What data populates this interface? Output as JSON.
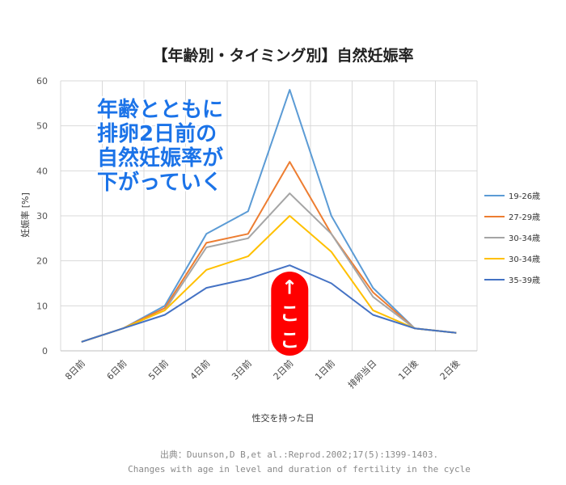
{
  "chart_data": {
    "type": "line",
    "title": "【年齢別・タイミング別】自然妊娠率",
    "xlabel": "性交を持った日",
    "ylabel": "妊娠率 [%]",
    "ylim": [
      0,
      60
    ],
    "yticks": [
      0,
      10,
      20,
      30,
      40,
      50,
      60
    ],
    "grid": "vertical-and-horizontal",
    "legend_position": "right",
    "categories": [
      "8日前",
      "6日前",
      "5日前",
      "4日前",
      "3日前",
      "2日前",
      "1日前",
      "排卵当日",
      "1日後",
      "2日後"
    ],
    "series": [
      {
        "name": "19-26歳",
        "color": "#5b9bd5",
        "values": [
          2,
          5,
          10,
          26,
          31,
          58,
          30,
          14,
          5,
          4
        ]
      },
      {
        "name": "27-29歳",
        "color": "#ed7d31",
        "values": [
          2,
          5,
          9.5,
          24,
          26,
          42,
          26,
          13,
          5,
          4
        ]
      },
      {
        "name": "30-34歳",
        "color": "#a5a5a5",
        "values": [
          2,
          5,
          9,
          23,
          25,
          35,
          26,
          12,
          5,
          4
        ]
      },
      {
        "name": "30-34歳",
        "color": "#ffc000",
        "values": [
          2,
          5,
          9,
          18,
          21,
          30,
          22,
          9,
          5,
          4
        ]
      },
      {
        "name": "35-39歳",
        "color": "#4472c4",
        "values": [
          2,
          5,
          8,
          14,
          16,
          19,
          15,
          8,
          5,
          4
        ]
      }
    ]
  },
  "annotation": {
    "callout_lines": [
      "年齢とともに",
      "排卵2日前の",
      "自然妊娠率が",
      "下がっていく"
    ],
    "callout_color": "#1b73e8",
    "marker_text": "←ここ",
    "marker_color": "#ff0000",
    "marker_category": "2日前"
  },
  "source": {
    "line1": "出典：Duunson,D B,et al.:Reprod.2002;17(5):1399-1403.",
    "line2": "Changes with age in level and duration of fertility in the cycle"
  }
}
